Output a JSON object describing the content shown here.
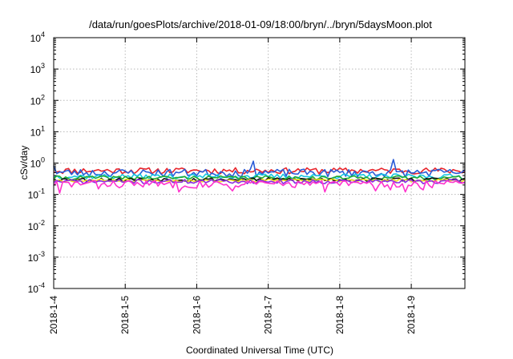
{
  "chart_data": {
    "type": "line",
    "title": "/data/run/goesPlots/archive/2018-01-09/18:00/bryn/../bryn/5daysMoon.plot",
    "xlabel": "Coordinated Universal Time (UTC)",
    "ylabel": "cSv/day",
    "yscale": "log",
    "ylim": [
      0.0001,
      10000
    ],
    "yticks": [
      {
        "value": 0.0001,
        "base": "10",
        "exp": "-4"
      },
      {
        "value": 0.001,
        "base": "10",
        "exp": "-3"
      },
      {
        "value": 0.01,
        "base": "10",
        "exp": "-2"
      },
      {
        "value": 0.1,
        "base": "10",
        "exp": "-1"
      },
      {
        "value": 1,
        "base": "10",
        "exp": "0"
      },
      {
        "value": 10,
        "base": "10",
        "exp": "1"
      },
      {
        "value": 100,
        "base": "10",
        "exp": "2"
      },
      {
        "value": 1000,
        "base": "10",
        "exp": "3"
      },
      {
        "value": 10000,
        "base": "10",
        "exp": "4"
      }
    ],
    "xlim": [
      "2018-01-04 00:00",
      "2018-01-09 18:00"
    ],
    "xticks": [
      "2018-1-4",
      "2018-1-5",
      "2018-1-6",
      "2018-1-7",
      "2018-1-8",
      "2018-1-9"
    ],
    "grid": true,
    "sample_hours": 1,
    "series": [
      {
        "color": "#e8242b",
        "base": 0.58,
        "jitter": 0.13,
        "seed": 11,
        "dips": []
      },
      {
        "color": "#2a5bd7",
        "base": 0.5,
        "jitter": 0.14,
        "seed": 23,
        "dips": [
          [
            0.1,
            0.82
          ],
          [
            36.5,
            1.0
          ],
          [
            67.2,
            1.15
          ],
          [
            114.4,
            1.3
          ]
        ]
      },
      {
        "color": "#19c6e0",
        "base": 0.38,
        "jitter": 0.07,
        "seed": 37,
        "dips": []
      },
      {
        "color": "#22aa33",
        "base": 0.34,
        "jitter": 0.05,
        "seed": 41,
        "dips": []
      },
      {
        "color": "#111111",
        "base": 0.3,
        "jitter": 0.04,
        "seed": 53,
        "dips": []
      },
      {
        "color": "#f0e020",
        "base": 0.28,
        "jitter": 0.03,
        "seed": 67,
        "dips": []
      },
      {
        "color": "#8a2be2",
        "base": 0.26,
        "jitter": 0.04,
        "seed": 71,
        "dips": []
      },
      {
        "color": "#ff33cc",
        "base": 0.22,
        "jitter": 0.06,
        "seed": 83,
        "dips": [
          [
            0.5,
            0.09
          ],
          [
            1.7,
            0.11
          ],
          [
            14.8,
            0.15
          ],
          [
            42.3,
            0.12
          ],
          [
            59.6,
            0.13
          ],
          [
            90.6,
            0.12
          ],
          [
            108.2,
            0.13
          ],
          [
            113.0,
            0.14
          ],
          [
            114.5,
            0.06
          ],
          [
            117.8,
            0.12
          ],
          [
            124.4,
            0.14
          ]
        ]
      }
    ]
  }
}
